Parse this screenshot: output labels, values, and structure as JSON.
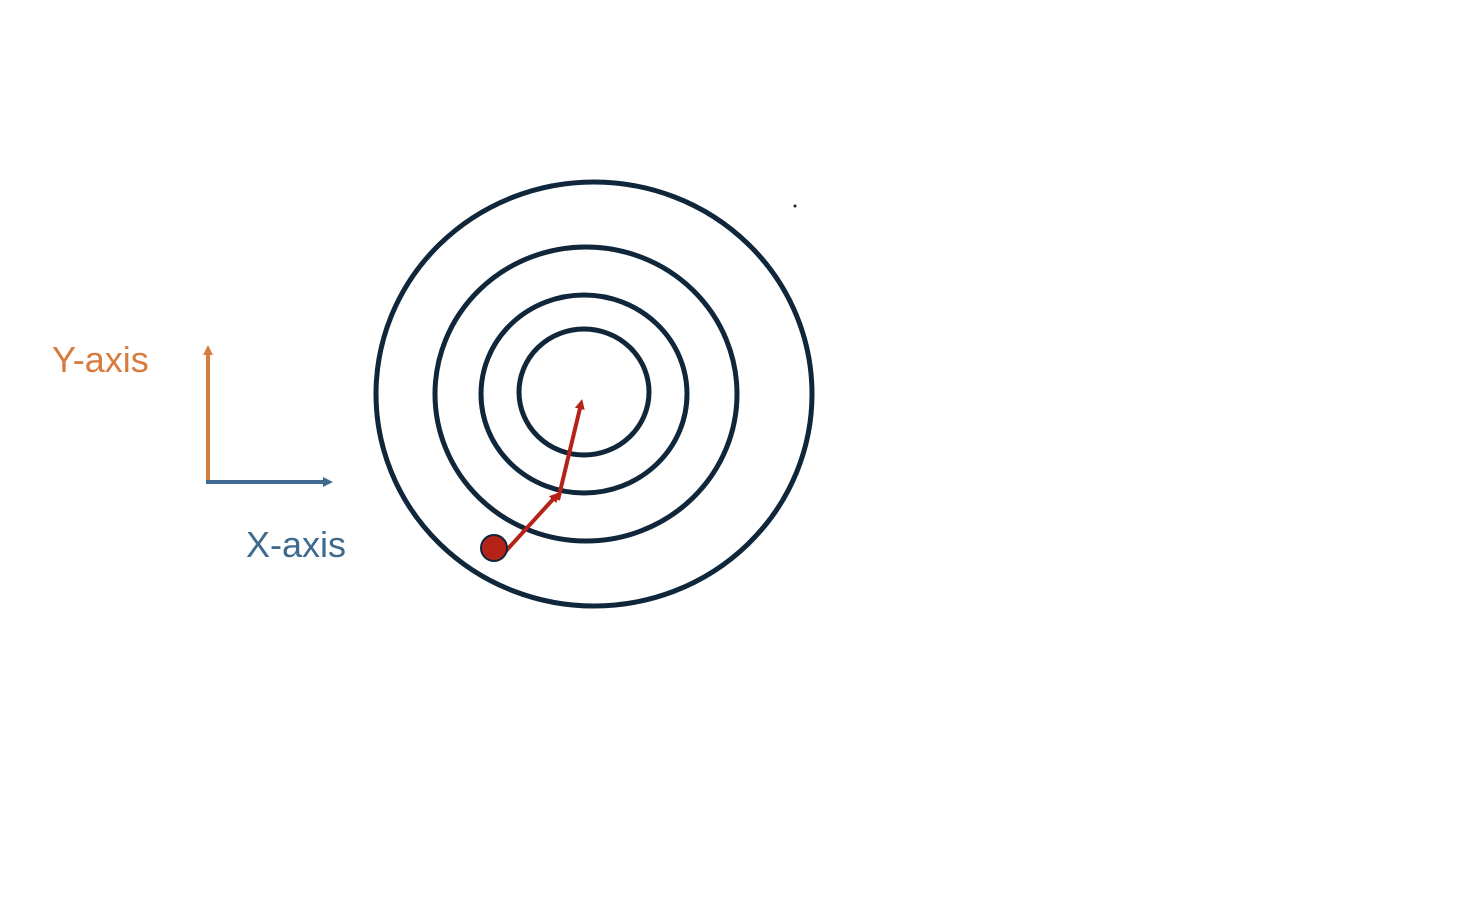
{
  "axes": {
    "y_label": "Y-axis",
    "x_label": "X-axis",
    "y_color": "#D97B3F",
    "x_color": "#3E6A8F"
  },
  "contours": {
    "count": 4,
    "stroke_color": "#10263A"
  },
  "path": {
    "color": "#B52218",
    "start_marker": "red-dot",
    "steps": 2
  }
}
